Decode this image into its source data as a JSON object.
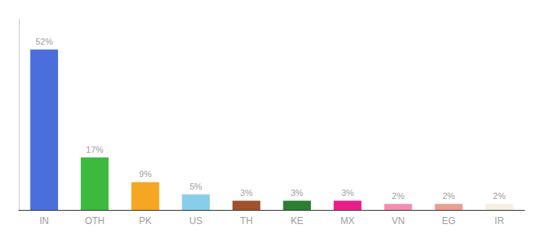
{
  "chart_data": {
    "type": "bar",
    "categories": [
      "IN",
      "OTH",
      "PK",
      "US",
      "TH",
      "KE",
      "MX",
      "VN",
      "EG",
      "IR"
    ],
    "values": [
      52,
      17,
      9,
      5,
      3,
      3,
      3,
      2,
      2,
      2
    ],
    "value_labels": [
      "52%",
      "17%",
      "9%",
      "5%",
      "3%",
      "3%",
      "3%",
      "2%",
      "2%",
      "2%"
    ],
    "colors": [
      "#4a6fdc",
      "#3dba3d",
      "#f5a623",
      "#87ceeb",
      "#a0522d",
      "#2e7d32",
      "#e91e8c",
      "#f48fb1",
      "#e8a090",
      "#f5f0e0"
    ],
    "ylim": [
      0,
      62
    ],
    "data_labels": true,
    "tick_labels": "x",
    "grid": false
  }
}
